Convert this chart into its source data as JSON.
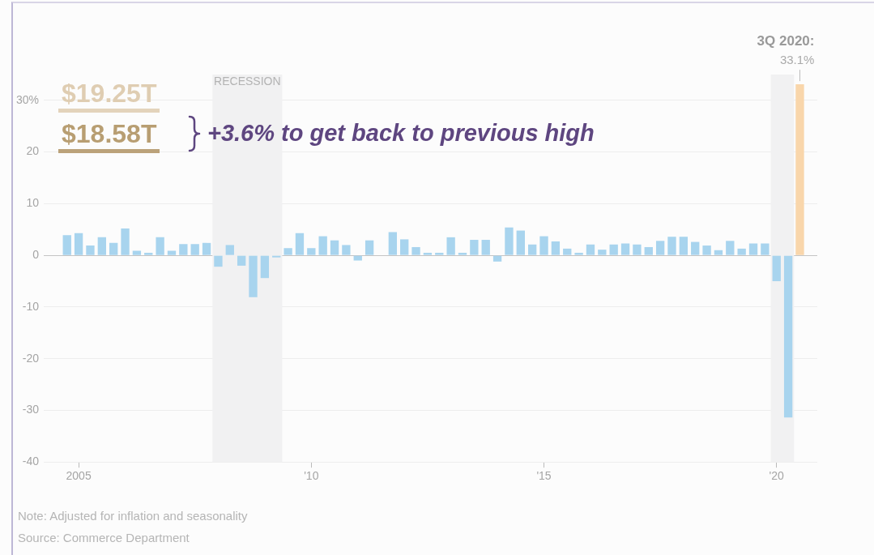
{
  "chart_data": {
    "type": "bar",
    "x": [
      2004.75,
      2005,
      2005.25,
      2005.5,
      2005.75,
      2006,
      2006.25,
      2006.5,
      2006.75,
      2007,
      2007.25,
      2007.5,
      2007.75,
      2008,
      2008.25,
      2008.5,
      2008.75,
      2009,
      2009.25,
      2009.5,
      2009.75,
      2010,
      2010.25,
      2010.5,
      2010.75,
      2011,
      2011.25,
      2011.5,
      2011.75,
      2012,
      2012.25,
      2012.5,
      2012.75,
      2013,
      2013.25,
      2013.5,
      2013.75,
      2014,
      2014.25,
      2014.5,
      2014.75,
      2015,
      2015.25,
      2015.5,
      2015.75,
      2016,
      2016.25,
      2016.5,
      2016.75,
      2017,
      2017.25,
      2017.5,
      2017.75,
      2018,
      2018.25,
      2018.5,
      2018.75,
      2019,
      2019.25,
      2019.5,
      2019.75,
      2020,
      2020.25,
      2020.5
    ],
    "values": [
      3.9,
      4.3,
      1.9,
      3.5,
      2.4,
      5.2,
      0.9,
      0.5,
      3.5,
      0.9,
      2.2,
      2.2,
      2.4,
      -2.2,
      2.0,
      -2.0,
      -8.1,
      -4.4,
      -0.4,
      1.4,
      4.3,
      1.4,
      3.7,
      2.9,
      2.0,
      -1.0,
      2.9,
      null,
      4.5,
      3.1,
      1.6,
      0.5,
      0.5,
      3.5,
      0.5,
      3.0,
      3.0,
      -1.2,
      5.4,
      4.8,
      2.1,
      3.7,
      2.7,
      1.3,
      0.5,
      2.1,
      1.1,
      2.1,
      2.3,
      2.1,
      1.6,
      2.8,
      3.6,
      3.6,
      2.6,
      1.9,
      1.0,
      2.8,
      1.3,
      2.3,
      2.3,
      -5.0,
      -31.4,
      33.1
    ],
    "colors": [
      "#a8d4ee",
      "#a8d4ee",
      "#a8d4ee",
      "#a8d4ee",
      "#a8d4ee",
      "#a8d4ee",
      "#a8d4ee",
      "#a8d4ee",
      "#a8d4ee",
      "#a8d4ee",
      "#a8d4ee",
      "#a8d4ee",
      "#a8d4ee",
      "#a8d4ee",
      "#a8d4ee",
      "#a8d4ee",
      "#a8d4ee",
      "#a8d4ee",
      "#a8d4ee",
      "#a8d4ee",
      "#a8d4ee",
      "#a8d4ee",
      "#a8d4ee",
      "#a8d4ee",
      "#a8d4ee",
      "#a8d4ee",
      "#a8d4ee",
      "#a8d4ee",
      "#a8d4ee",
      "#a8d4ee",
      "#a8d4ee",
      "#a8d4ee",
      "#a8d4ee",
      "#a8d4ee",
      "#a8d4ee",
      "#a8d4ee",
      "#a8d4ee",
      "#a8d4ee",
      "#a8d4ee",
      "#a8d4ee",
      "#a8d4ee",
      "#a8d4ee",
      "#a8d4ee",
      "#a8d4ee",
      "#a8d4ee",
      "#a8d4ee",
      "#a8d4ee",
      "#a8d4ee",
      "#a8d4ee",
      "#a8d4ee",
      "#a8d4ee",
      "#a8d4ee",
      "#a8d4ee",
      "#a8d4ee",
      "#a8d4ee",
      "#a8d4ee",
      "#a8d4ee",
      "#a8d4ee",
      "#a8d4ee",
      "#a8d4ee",
      "#a8d4ee",
      "#a8d4ee",
      "#a8d4ee",
      "#f9d6ab"
    ],
    "value_labels": [
      null,
      null,
      null,
      null,
      null,
      null,
      null,
      null,
      null,
      null,
      null,
      null,
      null,
      null,
      null,
      null,
      null,
      null,
      null,
      null,
      null,
      null,
      null,
      null,
      null,
      null,
      null,
      null,
      null,
      null,
      null,
      null,
      null,
      null,
      null,
      null,
      null,
      null,
      null,
      null,
      null,
      null,
      null,
      null,
      null,
      null,
      null,
      null,
      null,
      null,
      null,
      null,
      null,
      null,
      null,
      null,
      null,
      null,
      null,
      null,
      null,
      null,
      null,
      "33.1%"
    ],
    "xlim": [
      2004.25,
      2020.875
    ],
    "xticks": [
      {
        "value": 2005,
        "label": "2005"
      },
      {
        "value": 2010,
        "label": "'10"
      },
      {
        "value": 2015,
        "label": "'15"
      },
      {
        "value": 2020,
        "label": "'20"
      }
    ],
    "ylim": [
      -40,
      35
    ],
    "yticks": [
      -40,
      -30,
      -20,
      -10,
      0,
      10,
      20,
      {
        "value": 30,
        "label": "30%"
      }
    ],
    "grid": "y",
    "bands": [
      {
        "axis": "x",
        "from": 2007.875,
        "to": 2009.375,
        "label": "RECESSION",
        "color": "#f1f1f2"
      },
      {
        "axis": "x",
        "from": 2019.875,
        "to": 2020.375,
        "color": "#f1f1f2"
      }
    ],
    "annotations": [
      {
        "text": "3Q 2020:",
        "x": 2020.5,
        "y": 33.1
      },
      "$19.25T",
      "$18.58T",
      "+3.6% to get back to previous high",
      "Note: Adjusted for inflation and seasonality",
      "Source: Commerce Department"
    ]
  }
}
